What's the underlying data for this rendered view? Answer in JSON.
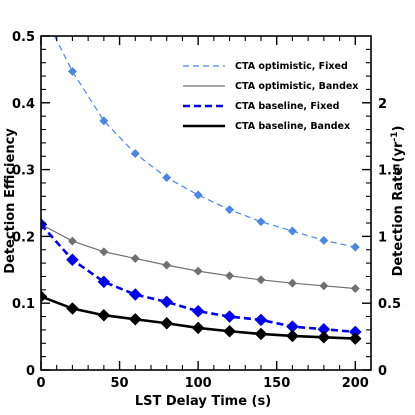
{
  "chart_data": {
    "type": "line",
    "xlabel": "LST Delay Time (s)",
    "ylabel": "Detection Efficiency",
    "y2label": "Detection Rate (yr",
    "y2label_sup": "-1",
    "y2label_close": ")",
    "xlim": [
      0,
      210
    ],
    "ylim": [
      0,
      0.5
    ],
    "y2lim": [
      0,
      2.5
    ],
    "x_ticks": [
      0,
      50,
      100,
      150,
      200
    ],
    "x_tick_labels": [
      "0",
      "50",
      "100",
      "150",
      "200"
    ],
    "y_ticks": [
      0,
      0.1,
      0.2,
      0.3,
      0.4,
      0.5
    ],
    "y_tick_labels": [
      "0",
      "0.1",
      "0.2",
      "0.3",
      "0.4",
      "0.5"
    ],
    "y2_ticks": [
      0,
      0.5,
      1,
      1.5,
      2
    ],
    "y2_tick_labels": [
      "0",
      "0.5",
      "1",
      "1.5",
      "2"
    ],
    "legend_position": "top-right",
    "x": [
      0,
      20,
      40,
      60,
      80,
      100,
      120,
      140,
      160,
      180,
      200
    ],
    "series": [
      {
        "name": "CTA optimistic, Fixed",
        "color": "#4a86e8",
        "style": "dashed-thin",
        "values": [
          0.54,
          0.447,
          0.373,
          0.324,
          0.288,
          0.262,
          0.24,
          0.222,
          0.208,
          0.194,
          0.184
        ]
      },
      {
        "name": "CTA optimistic, Bandex",
        "color": "#707070",
        "style": "solid-thin",
        "values": [
          0.218,
          0.193,
          0.177,
          0.167,
          0.157,
          0.148,
          0.141,
          0.135,
          0.13,
          0.126,
          0.122
        ]
      },
      {
        "name": "CTA baseline, Fixed",
        "color": "#0000ee",
        "style": "dashed-thick",
        "values": [
          0.218,
          0.165,
          0.132,
          0.113,
          0.102,
          0.088,
          0.08,
          0.075,
          0.065,
          0.061,
          0.057
        ]
      },
      {
        "name": "CTA baseline, Bandex",
        "color": "#000000",
        "style": "solid-thick",
        "values": [
          0.11,
          0.092,
          0.082,
          0.076,
          0.07,
          0.063,
          0.058,
          0.054,
          0.051,
          0.049,
          0.047
        ]
      }
    ]
  }
}
